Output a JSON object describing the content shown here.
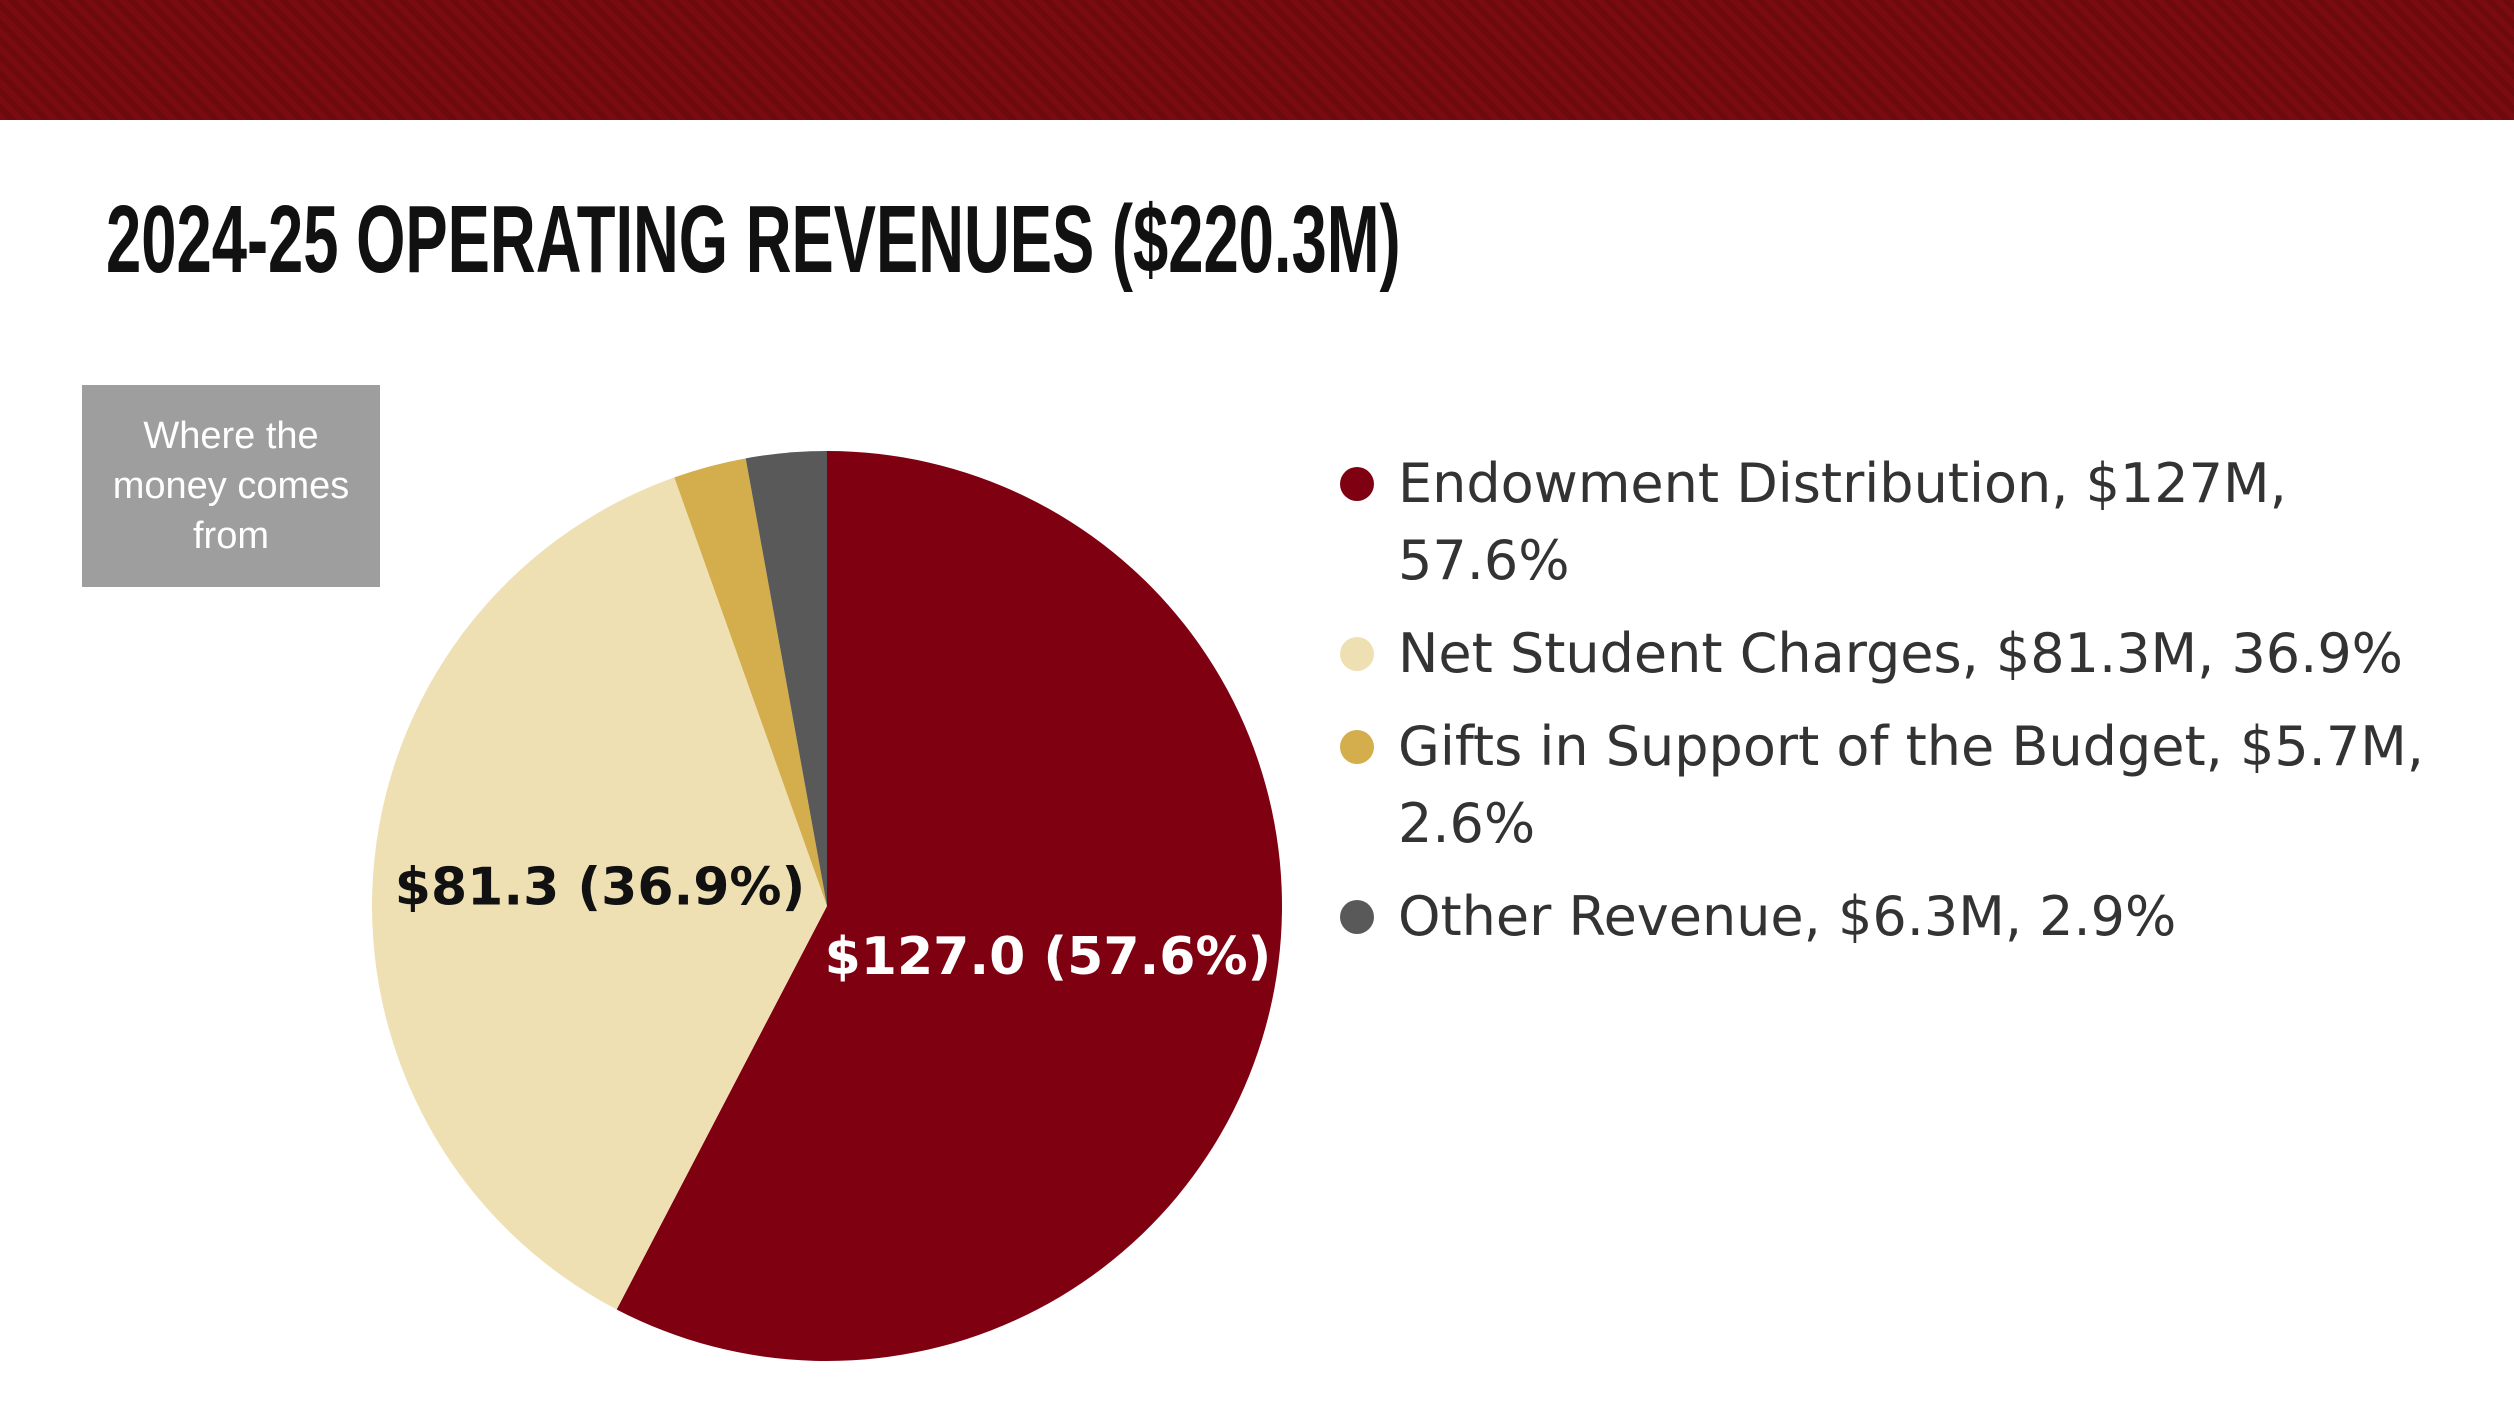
{
  "chart_data": {
    "type": "pie",
    "title": "2024-25 OPERATING REVENUES ($220.3M)",
    "note": "Where the money comes from",
    "categories": [
      "Endowment Distribution, $127M, 57.6%",
      "Net Student Charges, $81.3M, 36.9%",
      "Gifts in Support of the Budget, $5.7M, 2.6%",
      "Other Revenue, $6.3M, 2.9%"
    ],
    "values": [
      127.0,
      81.3,
      5.7,
      6.3
    ],
    "value_labels": [
      "$127.0 (57.6%)",
      "$81.3 (36.9%)",
      null,
      null
    ],
    "label_colors": [
      "#ffffff",
      "#111111",
      null,
      null
    ],
    "colors": [
      "#7f0011",
      "#efe0b4",
      "#d4ae4c",
      "#595959"
    ],
    "legend": "right"
  }
}
